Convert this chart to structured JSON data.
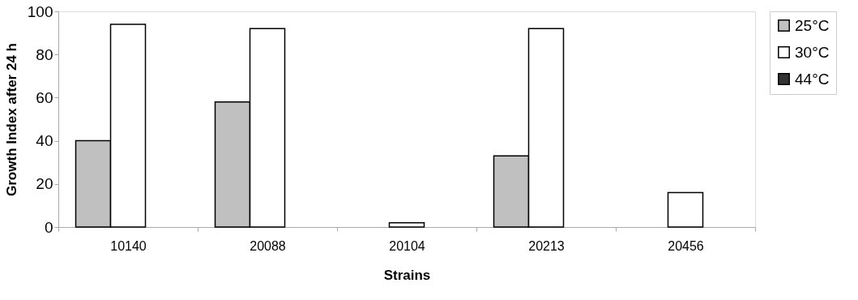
{
  "chart_data": {
    "type": "bar",
    "xlabel": "Strains",
    "ylabel": "Growth Index after 24 h",
    "categories": [
      "10140",
      "20088",
      "20104",
      "20213",
      "20456"
    ],
    "series": [
      {
        "name": "25°C",
        "color": "#c0c0c0",
        "values": [
          40,
          58,
          null,
          33,
          null
        ]
      },
      {
        "name": "30°C",
        "color": "#ffffff",
        "values": [
          94,
          92,
          2,
          92,
          16
        ]
      },
      {
        "name": "44°C",
        "color": "#333333",
        "values": [
          null,
          null,
          null,
          null,
          null
        ]
      }
    ],
    "ylim": [
      0,
      100
    ],
    "yticks": [
      0,
      20,
      40,
      60,
      80,
      100
    ],
    "grid": false,
    "legend": "right"
  }
}
